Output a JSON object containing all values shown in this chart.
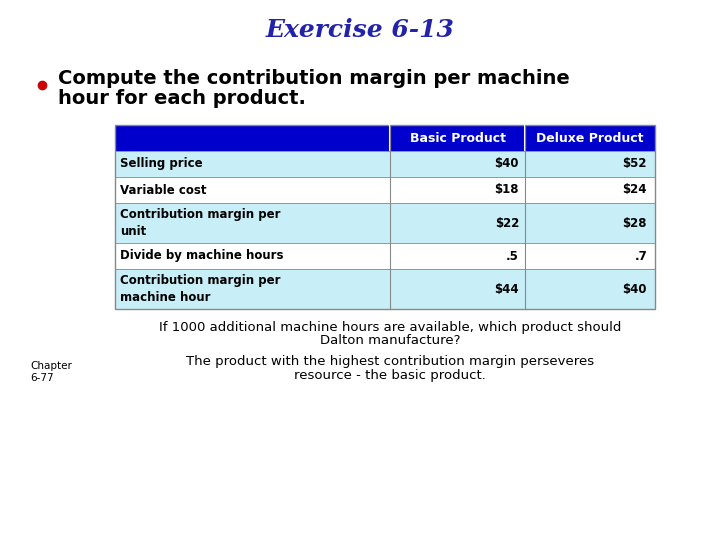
{
  "title": "Exercise 6-13",
  "title_color": "#2222AA",
  "title_fontsize": 18,
  "bullet_text_line1": "Compute the contribution margin per machine",
  "bullet_text_line2": "hour for each product.",
  "bullet_color": "#CC0000",
  "bullet_text_color": "#000000",
  "bullet_fontsize": 14,
  "header_bg": "#0000CC",
  "header_text_color": "#FFFFFF",
  "row_bg_light": "#C8EEF8",
  "row_bg_white": "#FFFFFF",
  "col_headers": [
    "",
    "Basic Product",
    "Deluxe Product"
  ],
  "rows": [
    {
      "label": "Selling price",
      "basic": "$40",
      "deluxe": "$52",
      "two_line": false
    },
    {
      "label": "Variable cost",
      "basic": "$18",
      "deluxe": "$24",
      "two_line": false
    },
    {
      "label": "Contribution margin per\nunit",
      "basic": "$22",
      "deluxe": "$28",
      "two_line": true
    },
    {
      "label": "Divide by machine hours",
      "basic": ".5",
      "deluxe": ".7",
      "two_line": false
    },
    {
      "label": "Contribution margin per\nmachine hour",
      "basic": "$44",
      "deluxe": "$40",
      "two_line": true
    }
  ],
  "footer_text1": "If 1000 additional machine hours are available, which product should",
  "footer_text2": "Dalton manufacture?",
  "answer_line1": "The product with the highest contribution margin perseveres",
  "answer_line2": "resource - the basic product.",
  "chapter_text_line1": "Chapter",
  "chapter_text_line2": "6-77",
  "footer_fontsize": 9.5,
  "answer_fontsize": 9.5,
  "chapter_fontsize": 7.5,
  "table_label_fontsize": 8.5,
  "table_value_fontsize": 8.5,
  "header_fontsize": 9
}
